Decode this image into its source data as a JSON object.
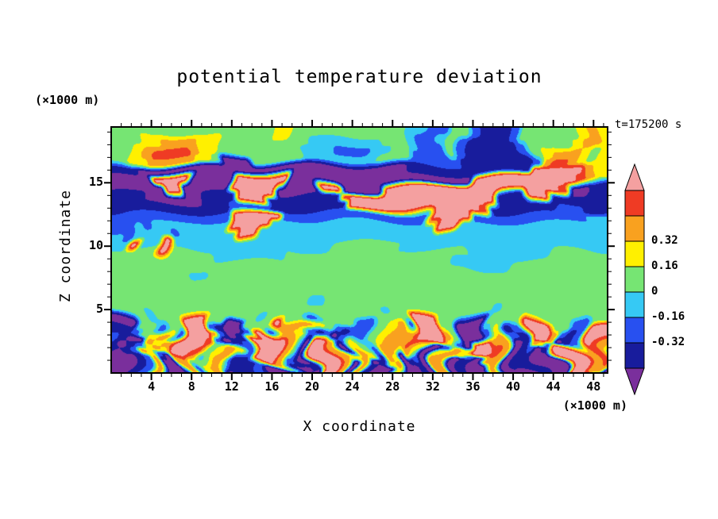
{
  "title": "potential temperature deviation",
  "time_label": "t=175200 s",
  "axes": {
    "x_label": "X coordinate",
    "x_unit": "(×1000 m)",
    "y_label": "Z coordinate",
    "y_unit": "(×1000 m)",
    "x_ticks": [
      4,
      8,
      12,
      16,
      20,
      24,
      28,
      32,
      36,
      40,
      44,
      48
    ],
    "y_ticks": [
      5,
      10,
      15
    ],
    "x_range": [
      0,
      49.4
    ],
    "y_range": [
      0,
      19.4
    ]
  },
  "colorbar": {
    "labels": [
      "0.32",
      "0.16",
      "0",
      "-0.16",
      "-0.32"
    ],
    "arrow_top_color": "#F4A0A0",
    "arrow_bottom_color": "#7A2F9C"
  },
  "chart_data": {
    "type": "heatmap",
    "title": "potential temperature deviation",
    "xlabel": "X coordinate (×1000 m)",
    "ylabel": "Z coordinate (×1000 m)",
    "time": "t=175200 s",
    "x_range": [
      0,
      49.4
    ],
    "z_range": [
      0,
      19.4
    ],
    "levels": [
      -0.48,
      -0.32,
      -0.16,
      0,
      0.16,
      0.32,
      0.48,
      0.64
    ],
    "palette_names": [
      "purple",
      "navy",
      "blue",
      "cyan",
      "green",
      "yellow",
      "orange",
      "red",
      "pink"
    ],
    "palette_hex": [
      "#7A2F9C",
      "#181C9C",
      "#2850F0",
      "#36C9F4",
      "#76E573",
      "#FFF000",
      "#F9A11F",
      "#EF3B24",
      "#F4A0A0"
    ],
    "value_of_index": [
      "< -0.48",
      "-0.48 to -0.32",
      "-0.32 to -0.16",
      "-0.16 to 0",
      "0 to 0.16",
      "0.16 to 0.32",
      "0.32 to 0.48",
      "0.48 to 0.64",
      "> 0.64"
    ],
    "grid_encoding": "26 rows (top of plot first) x 50 columns; each character is a palette index 0-8",
    "grid_shape": [
      26,
      50
    ],
    "grid_rows": [
      "44444444444444445544444444444433224421112444444565",
      "44455666655444444444333333344432234211112444445665",
      "44567777655444444443332222334432224211111245666545",
      "44556666554000444443333333344422222111111126776545",
      "11100000000000000000000000000011111111111188888865",
      "00008888000088888800000000000000000088888888888765",
      "00000880000088888000088000088888888888888888870011",
      "11100000011118881111111788888888888888811188111111",
      "11111111111122221111111188888888888887111111122211",
      "22222222222288888222222222222222888822222222222233",
      "22323333333388883333333333333333388333333333333333",
      "32333323333338833333333333333333333333333333333333",
      "33833833333333333333334444444333333333333333333333",
      "44444844443333333444444444444444444433333333444444",
      "44444444444444444444444444444444443333334444444444",
      "44444444334444444444444444444444444444444444444444",
      "44444444444444444444444444444444444444444444444444",
      "44444444444444444444444444444444444444444444444444",
      "44444444444444444444334444444444444444444444444444",
      "44434444444444434444444444434444444444344444444444",
      "00442448884400444844244422444488844000444488442244",
      "11245628882100282666542122456288864000251288621288",
      "21006568886201888652120254266688852088662188601288",
      "10125658872012888620886065165065026588760165288676",
      "01265206625652888601886560156012056520660120188660",
      "00126001606601120010886061005001066010060010088700"
    ]
  }
}
